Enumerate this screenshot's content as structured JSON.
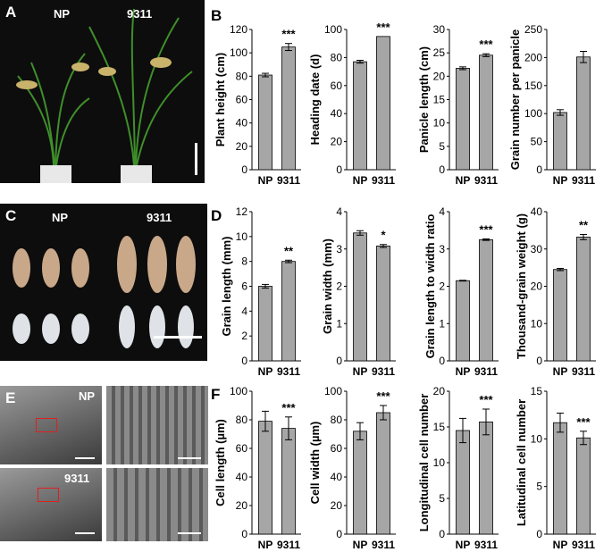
{
  "panels": {
    "A": {
      "letter": "A",
      "labels": [
        "NP",
        "9311"
      ]
    },
    "B": {
      "letter": "B"
    },
    "C": {
      "letter": "C",
      "labels": [
        "NP",
        "9311"
      ]
    },
    "D": {
      "letter": "D"
    },
    "E": {
      "letter": "E",
      "labels": [
        "NP",
        "9311"
      ]
    },
    "F": {
      "letter": "F"
    }
  },
  "colors": {
    "bar": "#a6a6a6",
    "axis": "#000000",
    "photo_dark": "#111111",
    "photo_gray": "#6b6b6b",
    "highlight_box": "#e02020"
  },
  "chart_data": [
    {
      "type": "bar",
      "ylabel": "Plant height (cm)",
      "categories": [
        "NP",
        "9311"
      ],
      "values": [
        81,
        105
      ],
      "errors": [
        1.5,
        3
      ],
      "ylim": [
        0,
        120
      ],
      "yticks": [
        0,
        20,
        40,
        60,
        80,
        100,
        120
      ],
      "significance": "***"
    },
    {
      "type": "bar",
      "ylabel": "Heading date (d)",
      "categories": [
        "NP",
        "9311"
      ],
      "values": [
        77,
        95
      ],
      "errors": [
        1,
        0
      ],
      "ylim": [
        0,
        100
      ],
      "yticks": [
        0,
        20,
        40,
        60,
        80,
        100
      ],
      "significance": "***"
    },
    {
      "type": "bar",
      "ylabel": "Panicle length (cm)",
      "categories": [
        "NP",
        "9311"
      ],
      "values": [
        21.7,
        24.5
      ],
      "errors": [
        0.3,
        0.3
      ],
      "ylim": [
        0,
        30
      ],
      "yticks": [
        0,
        5,
        10,
        15,
        20,
        25,
        30
      ],
      "significance": "***"
    },
    {
      "type": "bar",
      "ylabel": "Grain number per panicle",
      "categories": [
        "NP",
        "9311"
      ],
      "values": [
        102,
        201
      ],
      "errors": [
        5,
        10
      ],
      "ylim": [
        0,
        250
      ],
      "yticks": [
        0,
        50,
        100,
        150,
        200,
        250
      ],
      "significance": ""
    },
    {
      "type": "bar",
      "ylabel": "Grain length (mm)",
      "categories": [
        "NP",
        "9311"
      ],
      "values": [
        6.0,
        8.0
      ],
      "errors": [
        0.15,
        0.1
      ],
      "ylim": [
        0,
        12
      ],
      "yticks": [
        0,
        2,
        4,
        6,
        8,
        10,
        12
      ],
      "significance": "**"
    },
    {
      "type": "bar",
      "ylabel": "Grain width (mm)",
      "categories": [
        "NP",
        "9311"
      ],
      "values": [
        3.43,
        3.08
      ],
      "errors": [
        0.06,
        0.04
      ],
      "ylim": [
        0,
        4
      ],
      "yticks": [
        0,
        1,
        2,
        3,
        4
      ],
      "significance": "*"
    },
    {
      "type": "bar",
      "ylabel": "Grain length to width ratio",
      "categories": [
        "NP",
        "9311"
      ],
      "values": [
        2.15,
        3.25
      ],
      "errors": [
        0.01,
        0.02
      ],
      "ylim": [
        0,
        4
      ],
      "yticks": [
        0,
        1,
        2,
        3,
        4
      ],
      "significance": "***"
    },
    {
      "type": "bar",
      "ylabel": "Thousand-grain weight (g)",
      "categories": [
        "NP",
        "9311"
      ],
      "values": [
        24.5,
        33.2
      ],
      "errors": [
        0.3,
        0.7
      ],
      "ylim": [
        0,
        40
      ],
      "yticks": [
        0,
        10,
        20,
        30,
        40
      ],
      "significance": "**"
    },
    {
      "type": "bar",
      "ylabel": "Cell length (µm)",
      "categories": [
        "NP",
        "9311"
      ],
      "values": [
        79,
        74
      ],
      "errors": [
        7,
        8
      ],
      "ylim": [
        0,
        100
      ],
      "yticks": [
        0,
        20,
        40,
        60,
        80,
        100
      ],
      "significance": "***"
    },
    {
      "type": "bar",
      "ylabel": "Cell width (µm)",
      "categories": [
        "NP",
        "9311"
      ],
      "values": [
        72,
        85
      ],
      "errors": [
        6,
        5
      ],
      "ylim": [
        0,
        100
      ],
      "yticks": [
        0,
        20,
        40,
        60,
        80,
        100
      ],
      "significance": "***"
    },
    {
      "type": "bar",
      "ylabel": "Longitudinal cell number",
      "categories": [
        "NP",
        "9311"
      ],
      "values": [
        14.5,
        15.7
      ],
      "errors": [
        1.7,
        1.8
      ],
      "ylim": [
        0,
        20
      ],
      "yticks": [
        0,
        5,
        10,
        15,
        20
      ],
      "significance": "***"
    },
    {
      "type": "bar",
      "ylabel": "Latitudinal cell number",
      "categories": [
        "NP",
        "9311"
      ],
      "values": [
        11.7,
        10.1
      ],
      "errors": [
        1.0,
        0.7
      ],
      "ylim": [
        0,
        15
      ],
      "yticks": [
        0,
        5,
        10,
        15
      ],
      "significance": "***"
    }
  ]
}
